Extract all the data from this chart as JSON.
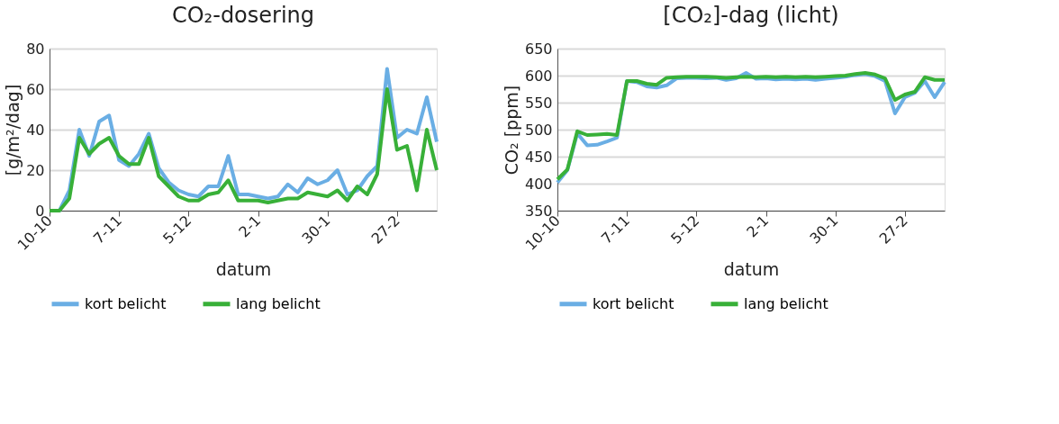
{
  "chart_data": [
    {
      "type": "line",
      "title": "CO₂-dosering",
      "xlabel": "datum",
      "ylabel": "[g/m²/dag]",
      "categories": [
        "10-10",
        null,
        null,
        null,
        null,
        null,
        null,
        "7-11",
        null,
        null,
        null,
        null,
        null,
        null,
        "5-12",
        null,
        null,
        null,
        null,
        null,
        null,
        "2-1",
        null,
        null,
        null,
        null,
        null,
        null,
        "30-1",
        null,
        null,
        null,
        null,
        null,
        null,
        "27-2",
        null,
        null,
        null,
        null
      ],
      "series": [
        {
          "name": "kort belicht",
          "color": "#6aaee4",
          "values": [
            0,
            0,
            10,
            40,
            27,
            44,
            47,
            25,
            22,
            28,
            38,
            21,
            14,
            10,
            8,
            7,
            12,
            12,
            27,
            8,
            8,
            7,
            6,
            7,
            13,
            9,
            16,
            13,
            15,
            20,
            8,
            10,
            17,
            22,
            70,
            36,
            40,
            38,
            56,
            34
          ]
        },
        {
          "name": "lang belicht",
          "color": "#38b038",
          "values": [
            0,
            0,
            6,
            36,
            28,
            33,
            36,
            27,
            23,
            23,
            36,
            17,
            12,
            7,
            5,
            5,
            8,
            9,
            15,
            5,
            5,
            5,
            4,
            5,
            6,
            6,
            9,
            8,
            7,
            10,
            5,
            12,
            8,
            18,
            60,
            30,
            32,
            10,
            40,
            20
          ]
        }
      ],
      "ylim": [
        0,
        80
      ],
      "yticks": [
        0,
        20,
        40,
        60,
        80
      ],
      "grid": "y",
      "legend": "bottom"
    },
    {
      "type": "line",
      "title": "[CO₂]-dag (licht)",
      "xlabel": "datum",
      "ylabel": "CO₂ [ppm]",
      "categories": [
        "10-10",
        null,
        null,
        null,
        null,
        null,
        null,
        "7-11",
        null,
        null,
        null,
        null,
        null,
        null,
        "5-12",
        null,
        null,
        null,
        null,
        null,
        null,
        "2-1",
        null,
        null,
        null,
        null,
        null,
        null,
        "30-1",
        null,
        null,
        null,
        null,
        null,
        null,
        "27-2",
        null,
        null,
        null,
        null
      ],
      "series": [
        {
          "name": "kort belicht",
          "color": "#6aaee4",
          "values": [
            402,
            425,
            493,
            471,
            472,
            478,
            485,
            590,
            588,
            580,
            578,
            582,
            595,
            596,
            596,
            595,
            596,
            592,
            595,
            605,
            594,
            595,
            593,
            594,
            593,
            594,
            592,
            594,
            596,
            598,
            601,
            603,
            599,
            590,
            530,
            560,
            568,
            590,
            560,
            588
          ]
        },
        {
          "name": "lang belicht",
          "color": "#38b038",
          "values": [
            408,
            426,
            497,
            490,
            491,
            492,
            490,
            590,
            590,
            585,
            583,
            596,
            597,
            598,
            598,
            598,
            597,
            596,
            597,
            598,
            597,
            598,
            597,
            598,
            597,
            598,
            597,
            598,
            599,
            600,
            603,
            605,
            602,
            595,
            555,
            565,
            570,
            597,
            592,
            592
          ]
        }
      ],
      "ylim": [
        350,
        650
      ],
      "yticks": [
        350,
        400,
        450,
        500,
        550,
        600,
        650
      ],
      "grid": "y",
      "legend": "bottom"
    }
  ]
}
